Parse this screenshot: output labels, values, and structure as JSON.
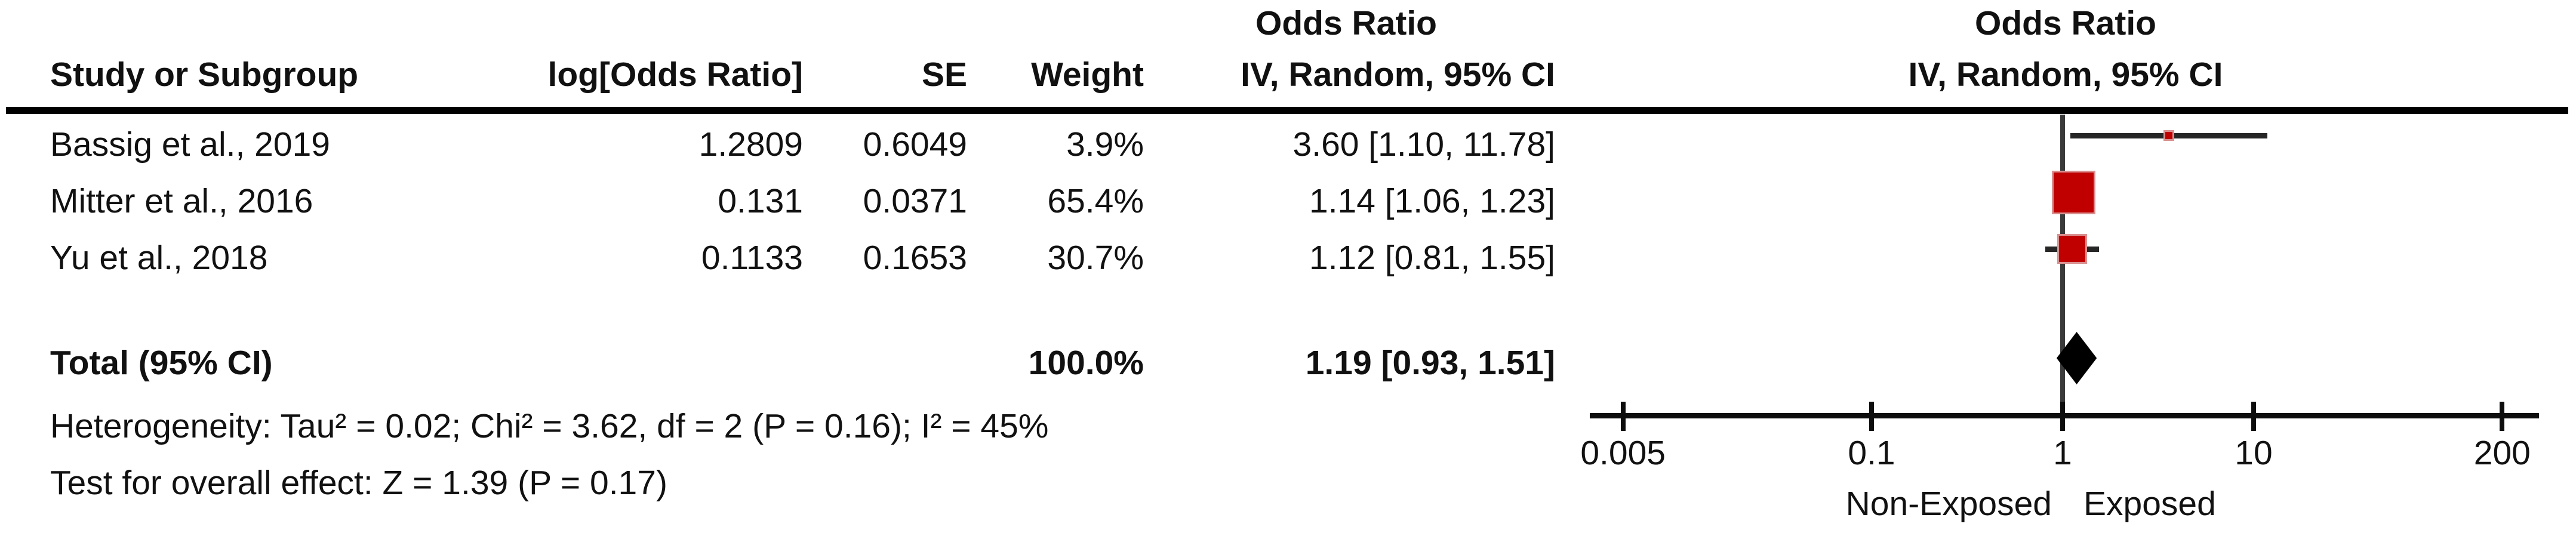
{
  "table": {
    "headers": {
      "effect_col_title": "Odds Ratio",
      "plot_col_title": "Odds Ratio",
      "study": "Study or Subgroup",
      "log_or": "log[Odds Ratio]",
      "se": "SE",
      "weight": "Weight",
      "ci": "IV, Random, 95% CI",
      "plot_ci": "IV, Random, 95% CI"
    },
    "rows": [
      {
        "study": "Bassig et al., 2019",
        "log_or": "1.2809",
        "se": "0.6049",
        "weight": "3.9%",
        "ci_text": "3.60 [1.10, 11.78]"
      },
      {
        "study": "Mitter et al., 2016",
        "log_or": "0.131",
        "se": "0.0371",
        "weight": "65.4%",
        "ci_text": "1.14 [1.06, 1.23]"
      },
      {
        "study": "Yu et al., 2018",
        "log_or": "0.1133",
        "se": "0.1653",
        "weight": "30.7%",
        "ci_text": "1.12 [0.81, 1.55]"
      }
    ],
    "total": {
      "label": "Total (95% CI)",
      "weight": "100.0%",
      "ci_text": "1.19 [0.93, 1.51]"
    },
    "footer": {
      "heterogeneity": "Heterogeneity: Tau² = 0.02; Chi² = 3.62, df = 2 (P = 0.16); I² = 45%",
      "overall_effect": "Test for overall effect: Z = 1.39 (P = 0.17)"
    }
  },
  "chart_data": {
    "type": "forest",
    "scale": "log",
    "effect_measure": "Odds Ratio",
    "model": "IV, Random, 95% CI",
    "axis_ticks": [
      0.005,
      0.1,
      1,
      10,
      200
    ],
    "axis_tick_labels": [
      "0.005",
      "0.1",
      "1",
      "10",
      "200"
    ],
    "x_axis_left_label": "Non-Exposed",
    "x_axis_right_label": "Exposed",
    "studies": [
      {
        "name": "Bassig et al., 2019",
        "or": 3.6,
        "ci_low": 1.1,
        "ci_high": 11.78,
        "weight_pct": 3.9
      },
      {
        "name": "Mitter et al., 2016",
        "or": 1.14,
        "ci_low": 1.06,
        "ci_high": 1.23,
        "weight_pct": 65.4
      },
      {
        "name": "Yu et al., 2018",
        "or": 1.12,
        "ci_low": 0.81,
        "ci_high": 1.55,
        "weight_pct": 30.7
      }
    ],
    "total": {
      "or": 1.19,
      "ci_low": 0.93,
      "ci_high": 1.51,
      "weight_pct": 100.0
    },
    "heterogeneity": {
      "tau2": 0.02,
      "chi2": 3.62,
      "df": 2,
      "p": 0.16,
      "i2_pct": 45
    },
    "overall_effect": {
      "z": 1.39,
      "p": 0.17
    }
  },
  "colors": {
    "marker_red": "#c00000",
    "diamond_black": "#000000",
    "line_dark": "#262626",
    "axis_gray": "#3a3a3a",
    "background": "#ffffff"
  }
}
